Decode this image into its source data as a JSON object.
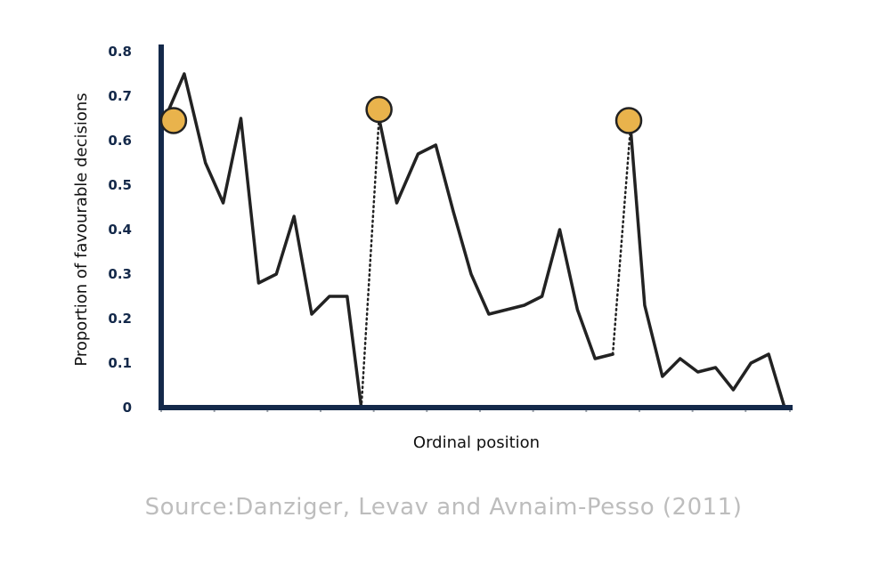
{
  "chart_data": {
    "type": "line",
    "title": "",
    "xlabel": "Ordinal position",
    "ylabel": "Proportion of favourable decisions",
    "ylim": [
      0,
      0.8
    ],
    "xlim": [
      0,
      35.5
    ],
    "yticks": [
      "0",
      "0.1",
      "0.2",
      "0.3",
      "0.4",
      "0.5",
      "0.6",
      "0.7",
      "0.8"
    ],
    "ytick_values": [
      0,
      0.1,
      0.2,
      0.3,
      0.4,
      0.5,
      0.6,
      0.7,
      0.8
    ],
    "xtick_values": [
      0,
      3,
      6,
      9,
      12,
      15,
      18,
      21,
      24,
      27,
      30,
      33,
      35.5
    ],
    "grid": false,
    "segments": [
      {
        "style": "solid",
        "points": [
          [
            0,
            0.63
          ],
          [
            1.3,
            0.75
          ],
          [
            2.5,
            0.55
          ],
          [
            3.5,
            0.46
          ],
          [
            4.5,
            0.65
          ],
          [
            5.5,
            0.28
          ],
          [
            6.5,
            0.3
          ],
          [
            7.5,
            0.43
          ],
          [
            8.5,
            0.21
          ],
          [
            9.5,
            0.25
          ],
          [
            10.5,
            0.25
          ],
          [
            11.3,
            0
          ]
        ]
      },
      {
        "style": "dotted",
        "points": [
          [
            11.3,
            0
          ],
          [
            12.3,
            0.65
          ]
        ]
      },
      {
        "style": "solid",
        "points": [
          [
            12.3,
            0.65
          ],
          [
            13.3,
            0.46
          ],
          [
            14.5,
            0.57
          ],
          [
            15.5,
            0.59
          ],
          [
            16.5,
            0.44
          ],
          [
            17.5,
            0.3
          ],
          [
            18.5,
            0.21
          ],
          [
            19.5,
            0.22
          ],
          [
            20.5,
            0.23
          ],
          [
            21.5,
            0.25
          ],
          [
            22.5,
            0.4
          ],
          [
            23.5,
            0.22
          ],
          [
            24.5,
            0.11
          ],
          [
            25.5,
            0.12
          ]
        ]
      },
      {
        "style": "dotted",
        "points": [
          [
            25.5,
            0.12
          ],
          [
            26.5,
            0.63
          ]
        ]
      },
      {
        "style": "solid",
        "points": [
          [
            26.5,
            0.63
          ],
          [
            27.3,
            0.23
          ],
          [
            28.3,
            0.07
          ],
          [
            29.3,
            0.11
          ],
          [
            30.3,
            0.08
          ],
          [
            31.3,
            0.09
          ],
          [
            32.3,
            0.04
          ],
          [
            33.3,
            0.1
          ],
          [
            34.3,
            0.12
          ],
          [
            35.2,
            0
          ]
        ]
      }
    ],
    "markers": [
      {
        "x": 0.7,
        "y": 0.645
      },
      {
        "x": 12.3,
        "y": 0.67
      },
      {
        "x": 26.4,
        "y": 0.645
      }
    ],
    "colors": {
      "axis": "#14294a",
      "line": "#222222",
      "marker_fill": "#e9b34c",
      "marker_stroke": "#222222",
      "source": "#bdbdbd"
    }
  },
  "source": "Source:Danziger, Levav and Avnaim-Pesso (2011)"
}
